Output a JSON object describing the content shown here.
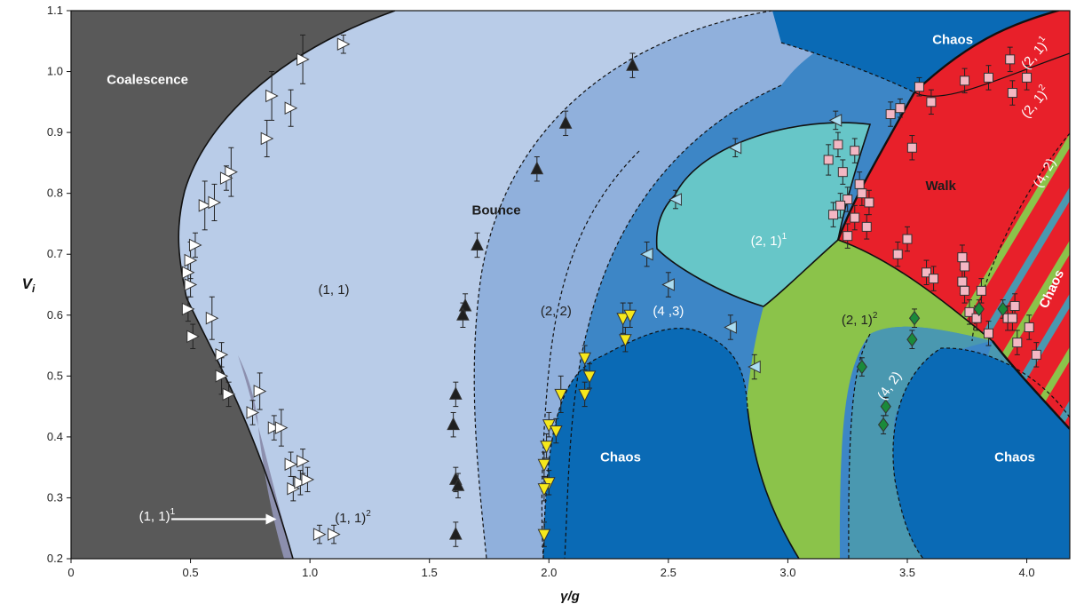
{
  "chart_data": {
    "type": "scatter",
    "title": "",
    "xlabel": "γ/g",
    "ylabel": "V",
    "ylabel_sub": "i",
    "xlim": [
      0,
      4.18
    ],
    "ylim": [
      0.2,
      1.1
    ],
    "x_ticks": [
      {
        "value": 0,
        "label": "0"
      },
      {
        "value": 0.5,
        "label": "0.5"
      },
      {
        "value": 1.0,
        "label": "1.0"
      },
      {
        "value": 1.5,
        "label": "1.5"
      },
      {
        "value": 2.0,
        "label": "2.0"
      },
      {
        "value": 2.5,
        "label": "2.5"
      },
      {
        "value": 3.0,
        "label": "3.0"
      },
      {
        "value": 3.5,
        "label": "3.5"
      },
      {
        "value": 4.0,
        "label": "4.0"
      }
    ],
    "y_ticks": [
      {
        "value": 0.2,
        "label": "0.2"
      },
      {
        "value": 0.3,
        "label": "0.3"
      },
      {
        "value": 0.4,
        "label": "0.4"
      },
      {
        "value": 0.5,
        "label": "0.5"
      },
      {
        "value": 0.6,
        "label": "0.6"
      },
      {
        "value": 0.7,
        "label": "0.7"
      },
      {
        "value": 0.8,
        "label": "0.8"
      },
      {
        "value": 0.9,
        "label": "0.9"
      },
      {
        "value": 1.0,
        "label": "1.0"
      },
      {
        "value": 1.1,
        "label": "1.1"
      }
    ],
    "colors": {
      "coalescence": "#595959",
      "bounce_11_1": "#8c8fae",
      "bounce_11": "#b9cce8",
      "bounce_22": "#90b0dc",
      "bounce_43": "#3d86c6",
      "chaos": "#0a6ab5",
      "bounce_21_1": "#67c6c8",
      "bounce_21_2": "#8bc34a",
      "bounce_42": "#4a98b0",
      "walk": "#e8202a",
      "marker_coalescence": "#ffffff",
      "marker_bounce": "#222222",
      "marker_43": "#aadcf0",
      "marker_22": "#f6e81c",
      "marker_walk": "#f4b7c3",
      "marker_42": "#1a8a3a"
    },
    "region_labels": [
      {
        "id": "coalescence",
        "text": "Coalescence",
        "sup": "",
        "x": 0.32,
        "y": 0.98,
        "color": "#ffffff",
        "bold": true,
        "rotate": 0
      },
      {
        "id": "bounce",
        "text": "Bounce",
        "sup": "",
        "x": 1.78,
        "y": 0.765,
        "color": "#1c1c1c",
        "bold": true,
        "rotate": 0
      },
      {
        "id": "b11",
        "text": "(1, 1)",
        "sup": "",
        "x": 1.1,
        "y": 0.635,
        "color": "#222222",
        "bold": false,
        "rotate": 0
      },
      {
        "id": "b22",
        "text": "(2, 2)",
        "sup": "",
        "x": 2.03,
        "y": 0.6,
        "color": "#222222",
        "bold": false,
        "rotate": 0
      },
      {
        "id": "b43",
        "text": "(4 ,3)",
        "sup": "",
        "x": 2.5,
        "y": 0.6,
        "color": "#ffffff",
        "bold": false,
        "rotate": 0
      },
      {
        "id": "b21_1",
        "text": "(2, 1)",
        "sup": "1",
        "x": 2.92,
        "y": 0.715,
        "color": "#ffffff",
        "bold": false,
        "rotate": 0
      },
      {
        "id": "b21_2",
        "text": "(2, 1)",
        "sup": "2",
        "x": 3.3,
        "y": 0.585,
        "color": "#222222",
        "bold": false,
        "rotate": 0
      },
      {
        "id": "b11_2",
        "text": "(1, 1)",
        "sup": "2",
        "x": 1.18,
        "y": 0.26,
        "color": "#222222",
        "bold": false,
        "rotate": 0
      },
      {
        "id": "b42_lower",
        "text": "(4, 2)",
        "sup": "",
        "x": 3.44,
        "y": 0.48,
        "color": "#ffffff",
        "bold": false,
        "rotate": -55
      },
      {
        "id": "chaos_mid",
        "text": "Chaos",
        "sup": "",
        "x": 2.3,
        "y": 0.36,
        "color": "#ffffff",
        "bold": true,
        "rotate": 0
      },
      {
        "id": "chaos_right",
        "text": "Chaos",
        "sup": "",
        "x": 3.95,
        "y": 0.36,
        "color": "#ffffff",
        "bold": true,
        "rotate": 0
      },
      {
        "id": "chaos_top",
        "text": "Chaos",
        "sup": "",
        "x": 3.69,
        "y": 1.045,
        "color": "#ffffff",
        "bold": true,
        "rotate": 0
      },
      {
        "id": "walk",
        "text": "Walk",
        "sup": "",
        "x": 3.64,
        "y": 0.805,
        "color": "#1c1c1c",
        "bold": true,
        "rotate": 0
      },
      {
        "id": "chaos_walk",
        "text": "Chaos",
        "sup": "",
        "x": 4.12,
        "y": 0.64,
        "color": "#ffffff",
        "bold": true,
        "rotate": -65
      },
      {
        "id": "w21_1",
        "text": "(2, 1)",
        "sup": "1",
        "x": 4.05,
        "y": 1.025,
        "color": "#ffffff",
        "bold": false,
        "rotate": -50
      },
      {
        "id": "w21_2",
        "text": "(2, 1)",
        "sup": "2",
        "x": 4.05,
        "y": 0.945,
        "color": "#ffffff",
        "bold": false,
        "rotate": -50
      },
      {
        "id": "w42",
        "text": "(4, 2)",
        "sup": "",
        "x": 4.09,
        "y": 0.83,
        "color": "#ffffff",
        "bold": false,
        "rotate": -60
      }
    ],
    "annotation": {
      "text": "(1, 1)",
      "sup": "1",
      "text_x": 0.36,
      "text_y": 0.27,
      "arrow_from": [
        0.42,
        0.265
      ],
      "arrow_to": [
        0.86,
        0.265
      ]
    },
    "series": [
      {
        "name": "",
        "id": "coalescence",
        "marker": "triangle-right",
        "color": "#ffffff",
        "points": [
          {
            "x": 1.14,
            "y": 1.045,
            "err": 0.015
          },
          {
            "x": 0.97,
            "y": 1.02,
            "err": 0.04
          },
          {
            "x": 0.84,
            "y": 0.96,
            "err": 0.04
          },
          {
            "x": 0.92,
            "y": 0.94,
            "err": 0.03
          },
          {
            "x": 0.82,
            "y": 0.89,
            "err": 0.03
          },
          {
            "x": 0.67,
            "y": 0.835,
            "err": 0.04
          },
          {
            "x": 0.65,
            "y": 0.825,
            "err": 0.02
          },
          {
            "x": 0.56,
            "y": 0.78,
            "err": 0.04
          },
          {
            "x": 0.6,
            "y": 0.785,
            "err": 0.03
          },
          {
            "x": 0.52,
            "y": 0.715,
            "err": 0.02
          },
          {
            "x": 0.5,
            "y": 0.69,
            "err": 0.03
          },
          {
            "x": 0.49,
            "y": 0.67,
            "err": 0.02
          },
          {
            "x": 0.5,
            "y": 0.65,
            "err": 0.02
          },
          {
            "x": 0.49,
            "y": 0.61,
            "err": 0.02
          },
          {
            "x": 0.59,
            "y": 0.595,
            "err": 0.035
          },
          {
            "x": 0.51,
            "y": 0.565,
            "err": 0.02
          },
          {
            "x": 0.63,
            "y": 0.535,
            "err": 0.02
          },
          {
            "x": 0.63,
            "y": 0.5,
            "err": 0.03
          },
          {
            "x": 0.66,
            "y": 0.47,
            "err": 0.02
          },
          {
            "x": 0.79,
            "y": 0.475,
            "err": 0.03
          },
          {
            "x": 0.76,
            "y": 0.44,
            "err": 0.02
          },
          {
            "x": 0.85,
            "y": 0.415,
            "err": 0.02
          },
          {
            "x": 0.88,
            "y": 0.415,
            "err": 0.03
          },
          {
            "x": 0.92,
            "y": 0.355,
            "err": 0.02
          },
          {
            "x": 0.97,
            "y": 0.36,
            "err": 0.02
          },
          {
            "x": 0.93,
            "y": 0.315,
            "err": 0.02
          },
          {
            "x": 0.96,
            "y": 0.325,
            "err": 0.02
          },
          {
            "x": 0.99,
            "y": 0.33,
            "err": 0.02
          },
          {
            "x": 1.04,
            "y": 0.24,
            "err": 0.015
          },
          {
            "x": 1.1,
            "y": 0.24,
            "err": 0.015
          }
        ]
      },
      {
        "name": "",
        "id": "bounce",
        "marker": "triangle-up",
        "color": "#1f1f1f",
        "points": [
          {
            "x": 2.35,
            "y": 1.01,
            "err": 0.02
          },
          {
            "x": 2.07,
            "y": 0.915,
            "err": 0.02
          },
          {
            "x": 1.95,
            "y": 0.84,
            "err": 0.02
          },
          {
            "x": 1.7,
            "y": 0.715,
            "err": 0.02
          },
          {
            "x": 1.65,
            "y": 0.615,
            "err": 0.02
          },
          {
            "x": 1.64,
            "y": 0.6,
            "err": 0.02
          },
          {
            "x": 1.61,
            "y": 0.47,
            "err": 0.02
          },
          {
            "x": 1.6,
            "y": 0.42,
            "err": 0.02
          },
          {
            "x": 1.61,
            "y": 0.33,
            "err": 0.02
          },
          {
            "x": 1.62,
            "y": 0.32,
            "err": 0.02
          },
          {
            "x": 1.61,
            "y": 0.24,
            "err": 0.02
          }
        ]
      },
      {
        "name": "",
        "id": "period43",
        "marker": "triangle-left",
        "color": "#aadcf0",
        "points": [
          {
            "x": 3.2,
            "y": 0.92,
            "err": 0.015
          },
          {
            "x": 2.78,
            "y": 0.875,
            "err": 0.015
          },
          {
            "x": 2.53,
            "y": 0.79,
            "err": 0.015
          },
          {
            "x": 2.41,
            "y": 0.7,
            "err": 0.02
          },
          {
            "x": 2.5,
            "y": 0.65,
            "err": 0.02
          },
          {
            "x": 2.76,
            "y": 0.58,
            "err": 0.02
          },
          {
            "x": 2.86,
            "y": 0.515,
            "err": 0.02
          }
        ]
      },
      {
        "name": "",
        "id": "period22",
        "marker": "triangle-down",
        "color": "#f6e81c",
        "points": [
          {
            "x": 2.31,
            "y": 0.595,
            "err": 0.025
          },
          {
            "x": 2.34,
            "y": 0.6,
            "err": 0.02
          },
          {
            "x": 2.32,
            "y": 0.56,
            "err": 0.02
          },
          {
            "x": 2.15,
            "y": 0.53,
            "err": 0.02
          },
          {
            "x": 2.17,
            "y": 0.5,
            "err": 0.02
          },
          {
            "x": 2.05,
            "y": 0.47,
            "err": 0.03
          },
          {
            "x": 2.15,
            "y": 0.47,
            "err": 0.02
          },
          {
            "x": 2.0,
            "y": 0.42,
            "err": 0.02
          },
          {
            "x": 2.03,
            "y": 0.41,
            "err": 0.02
          },
          {
            "x": 1.99,
            "y": 0.385,
            "err": 0.02
          },
          {
            "x": 1.98,
            "y": 0.355,
            "err": 0.02
          },
          {
            "x": 2.0,
            "y": 0.325,
            "err": 0.02
          },
          {
            "x": 1.98,
            "y": 0.315,
            "err": 0.02
          },
          {
            "x": 1.98,
            "y": 0.24,
            "err": 0.02
          }
        ]
      },
      {
        "name": "",
        "id": "walkers",
        "marker": "square",
        "color": "#f4b7c3",
        "points": [
          {
            "x": 3.55,
            "y": 0.975,
            "err": 0.015
          },
          {
            "x": 3.74,
            "y": 0.985,
            "err": 0.02
          },
          {
            "x": 3.84,
            "y": 0.99,
            "err": 0.02
          },
          {
            "x": 3.93,
            "y": 1.02,
            "err": 0.02
          },
          {
            "x": 4.0,
            "y": 0.99,
            "err": 0.02
          },
          {
            "x": 3.94,
            "y": 0.965,
            "err": 0.02
          },
          {
            "x": 3.47,
            "y": 0.94,
            "err": 0.015
          },
          {
            "x": 3.43,
            "y": 0.93,
            "err": 0.02
          },
          {
            "x": 3.6,
            "y": 0.95,
            "err": 0.02
          },
          {
            "x": 3.21,
            "y": 0.88,
            "err": 0.02
          },
          {
            "x": 3.28,
            "y": 0.87,
            "err": 0.02
          },
          {
            "x": 3.17,
            "y": 0.855,
            "err": 0.025
          },
          {
            "x": 3.23,
            "y": 0.835,
            "err": 0.02
          },
          {
            "x": 3.52,
            "y": 0.875,
            "err": 0.02
          },
          {
            "x": 3.3,
            "y": 0.815,
            "err": 0.02
          },
          {
            "x": 3.31,
            "y": 0.8,
            "err": 0.02
          },
          {
            "x": 3.25,
            "y": 0.79,
            "err": 0.02
          },
          {
            "x": 3.22,
            "y": 0.78,
            "err": 0.02
          },
          {
            "x": 3.34,
            "y": 0.785,
            "err": 0.02
          },
          {
            "x": 3.19,
            "y": 0.765,
            "err": 0.02
          },
          {
            "x": 3.28,
            "y": 0.76,
            "err": 0.02
          },
          {
            "x": 3.33,
            "y": 0.745,
            "err": 0.02
          },
          {
            "x": 3.25,
            "y": 0.73,
            "err": 0.02
          },
          {
            "x": 3.5,
            "y": 0.725,
            "err": 0.02
          },
          {
            "x": 3.46,
            "y": 0.7,
            "err": 0.02
          },
          {
            "x": 3.73,
            "y": 0.695,
            "err": 0.02
          },
          {
            "x": 3.74,
            "y": 0.68,
            "err": 0.02
          },
          {
            "x": 3.58,
            "y": 0.67,
            "err": 0.02
          },
          {
            "x": 3.61,
            "y": 0.66,
            "err": 0.02
          },
          {
            "x": 3.73,
            "y": 0.655,
            "err": 0.02
          },
          {
            "x": 3.74,
            "y": 0.64,
            "err": 0.02
          },
          {
            "x": 3.81,
            "y": 0.64,
            "err": 0.02
          },
          {
            "x": 3.95,
            "y": 0.615,
            "err": 0.02
          },
          {
            "x": 3.76,
            "y": 0.605,
            "err": 0.02
          },
          {
            "x": 3.79,
            "y": 0.595,
            "err": 0.02
          },
          {
            "x": 3.92,
            "y": 0.595,
            "err": 0.02
          },
          {
            "x": 3.94,
            "y": 0.595,
            "err": 0.02
          },
          {
            "x": 4.01,
            "y": 0.58,
            "err": 0.02
          },
          {
            "x": 3.84,
            "y": 0.57,
            "err": 0.02
          },
          {
            "x": 3.96,
            "y": 0.555,
            "err": 0.02
          },
          {
            "x": 4.04,
            "y": 0.535,
            "err": 0.02
          }
        ]
      },
      {
        "name": "",
        "id": "period42",
        "marker": "diamond",
        "color": "#1a8a3a",
        "points": [
          {
            "x": 3.53,
            "y": 0.595,
            "err": 0.015
          },
          {
            "x": 3.52,
            "y": 0.56,
            "err": 0.015
          },
          {
            "x": 3.31,
            "y": 0.515,
            "err": 0.015
          },
          {
            "x": 3.41,
            "y": 0.45,
            "err": 0.015
          },
          {
            "x": 3.4,
            "y": 0.42,
            "err": 0.015
          },
          {
            "x": 3.8,
            "y": 0.61,
            "err": 0.015
          },
          {
            "x": 3.9,
            "y": 0.61,
            "err": 0.015
          }
        ]
      }
    ]
  }
}
